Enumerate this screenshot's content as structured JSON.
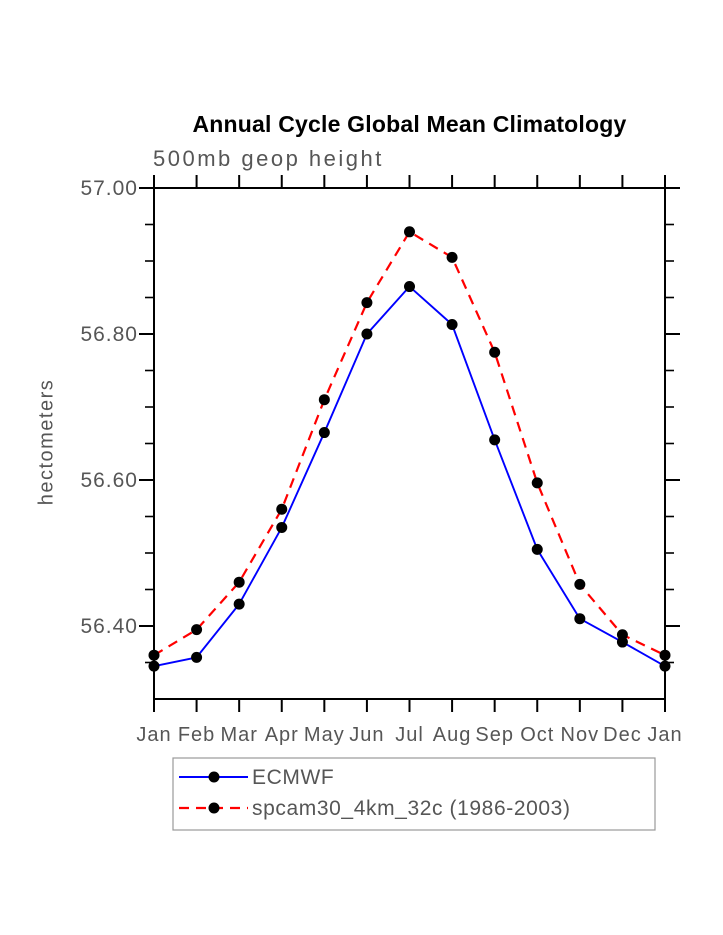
{
  "title": "Annual Cycle Global Mean Climatology",
  "subtitle": "500mb geop height",
  "y_axis_title": "hectometers",
  "colors": {
    "background": "#ffffff",
    "title_text": "#000000",
    "axis_frame": "#000000",
    "axis_text": "#565656",
    "ecmwf_line": "#0000ff",
    "spcam_line": "#ff0000",
    "marker": "#000000",
    "legend_border": "#999999"
  },
  "chart_data": {
    "type": "line",
    "title": "Annual Cycle Global Mean Climatology",
    "subtitle": "500mb geop height",
    "ylabel": "hectometers",
    "x_categories": [
      "Jan",
      "Feb",
      "Mar",
      "Apr",
      "May",
      "Jun",
      "Jul",
      "Aug",
      "Sep",
      "Oct",
      "Nov",
      "Dec",
      "Jan"
    ],
    "series": [
      {
        "name": "ECMWF",
        "color": "#0000ff",
        "line_style": "solid",
        "marker": "filled-circle",
        "marker_color": "#000000",
        "values": [
          56.345,
          56.357,
          56.43,
          56.535,
          56.665,
          56.8,
          56.865,
          56.813,
          56.655,
          56.505,
          56.41,
          56.378,
          56.345
        ]
      },
      {
        "name": "spcam30_4km_32c (1986-2003)",
        "color": "#ff0000",
        "line_style": "dashed",
        "marker": "filled-circle",
        "marker_color": "#000000",
        "values": [
          56.36,
          56.395,
          56.46,
          56.56,
          56.71,
          56.843,
          56.94,
          56.905,
          56.775,
          56.596,
          56.457,
          56.388,
          56.36
        ]
      }
    ],
    "ylim": [
      56.3,
      57.0
    ],
    "ytick_major": [
      {
        "value": 56.4,
        "label": "56.40"
      },
      {
        "value": 56.6,
        "label": "56.60"
      },
      {
        "value": 56.8,
        "label": "56.80"
      },
      {
        "value": 57.0,
        "label": "57.00"
      }
    ],
    "ytick_minor_step": 0.05,
    "grid": false,
    "legend_position": "bottom",
    "tick_direction": "out"
  }
}
